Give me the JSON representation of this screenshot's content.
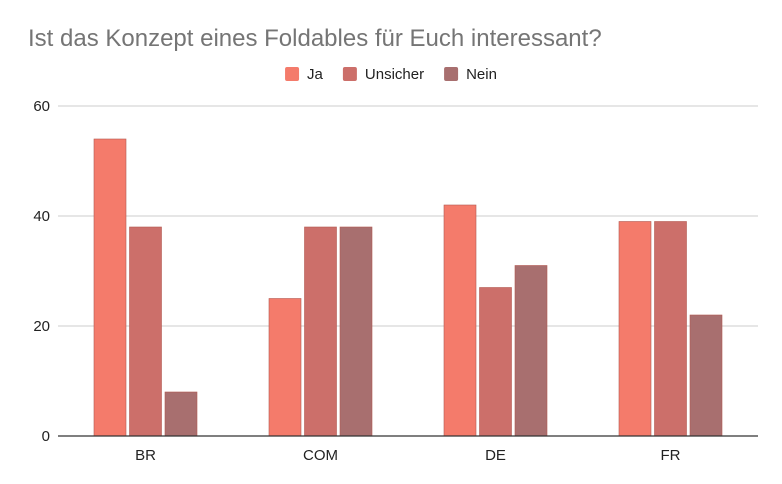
{
  "chart_data": {
    "type": "bar",
    "title": "Ist das Konzept eines Foldables für Euch interessant?",
    "categories": [
      "BR",
      "COM",
      "DE",
      "FR"
    ],
    "series": [
      {
        "name": "Ja",
        "color": "#f47b6b",
        "values": [
          54,
          25,
          42,
          39
        ]
      },
      {
        "name": "Unsicher",
        "color": "#cc6f6a",
        "values": [
          38,
          38,
          27,
          39
        ]
      },
      {
        "name": "Nein",
        "color": "#a86f6f",
        "values": [
          8,
          38,
          31,
          22
        ]
      }
    ],
    "ylim": [
      0,
      60
    ],
    "yticks": [
      0,
      20,
      40,
      60
    ],
    "xlabel": "",
    "ylabel": "",
    "grid": true,
    "legend_position": "top-center"
  }
}
